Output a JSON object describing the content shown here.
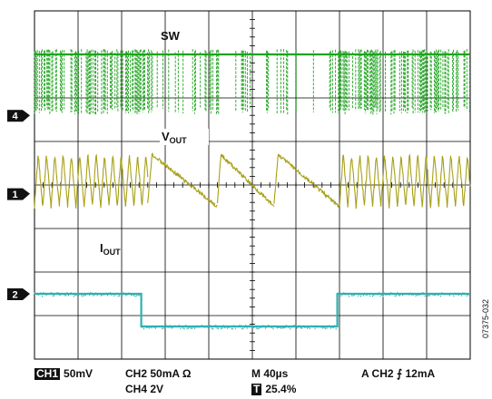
{
  "figure_id": "07375-032",
  "colors": {
    "sw": "#1fa31f",
    "vout": "#a8a018",
    "iout": "#2eb0b0",
    "grid": "#000000"
  },
  "chart_data": {
    "type": "line",
    "title": "",
    "xlabel": "",
    "ylabel": "",
    "x_divisions": 10,
    "y_divisions": 8,
    "grid": true,
    "channel_markers": [
      {
        "id": "4",
        "label": "4",
        "division": 2.4
      },
      {
        "id": "1",
        "label": "1",
        "division": 4.2
      },
      {
        "id": "2",
        "label": "2",
        "division": 6.5
      }
    ],
    "series": [
      {
        "name": "SW",
        "channel": "4",
        "color": "#1fa31f",
        "high_level_div": 1.0,
        "low_level_div": 2.3,
        "dense_intervals_div": [
          [
            0.0,
            2.7
          ],
          [
            7.0,
            10.0
          ]
        ],
        "sparse_intervals_div": [
          [
            2.7,
            7.0
          ]
        ]
      },
      {
        "name": "VOUT",
        "channel": "1",
        "color": "#a8a018",
        "dense_ripple_div": [
          [
            0.0,
            2.6
          ],
          [
            7.0,
            10.0
          ]
        ],
        "decay_segments_div": [
          [
            2.6,
            4.2
          ],
          [
            4.2,
            5.5
          ],
          [
            5.5,
            7.0
          ]
        ],
        "top_div": 3.3,
        "bottom_div": 4.5
      },
      {
        "name": "IOUT",
        "channel": "2",
        "color": "#2eb0b0",
        "points_div": [
          [
            0.0,
            6.5
          ],
          [
            2.45,
            6.5
          ],
          [
            2.45,
            7.25
          ],
          [
            6.95,
            7.25
          ],
          [
            6.95,
            6.5
          ],
          [
            10.0,
            6.5
          ]
        ]
      }
    ],
    "annotations": [
      {
        "id": "sw",
        "text": "SW"
      },
      {
        "id": "vout",
        "main": "V",
        "sub": "OUT"
      },
      {
        "id": "iout",
        "main": "I",
        "sub": "OUT"
      }
    ]
  },
  "status": {
    "ch1_label": "CH1",
    "ch1_value": "50mV",
    "ch2": "CH2  50mA Ω",
    "ch4": "CH4 2V",
    "timebase": "M 40µs",
    "trigger_pos_label": "T",
    "trigger_pos": "25.4%",
    "trigger": "A  CH2 ⨍  12mA"
  }
}
